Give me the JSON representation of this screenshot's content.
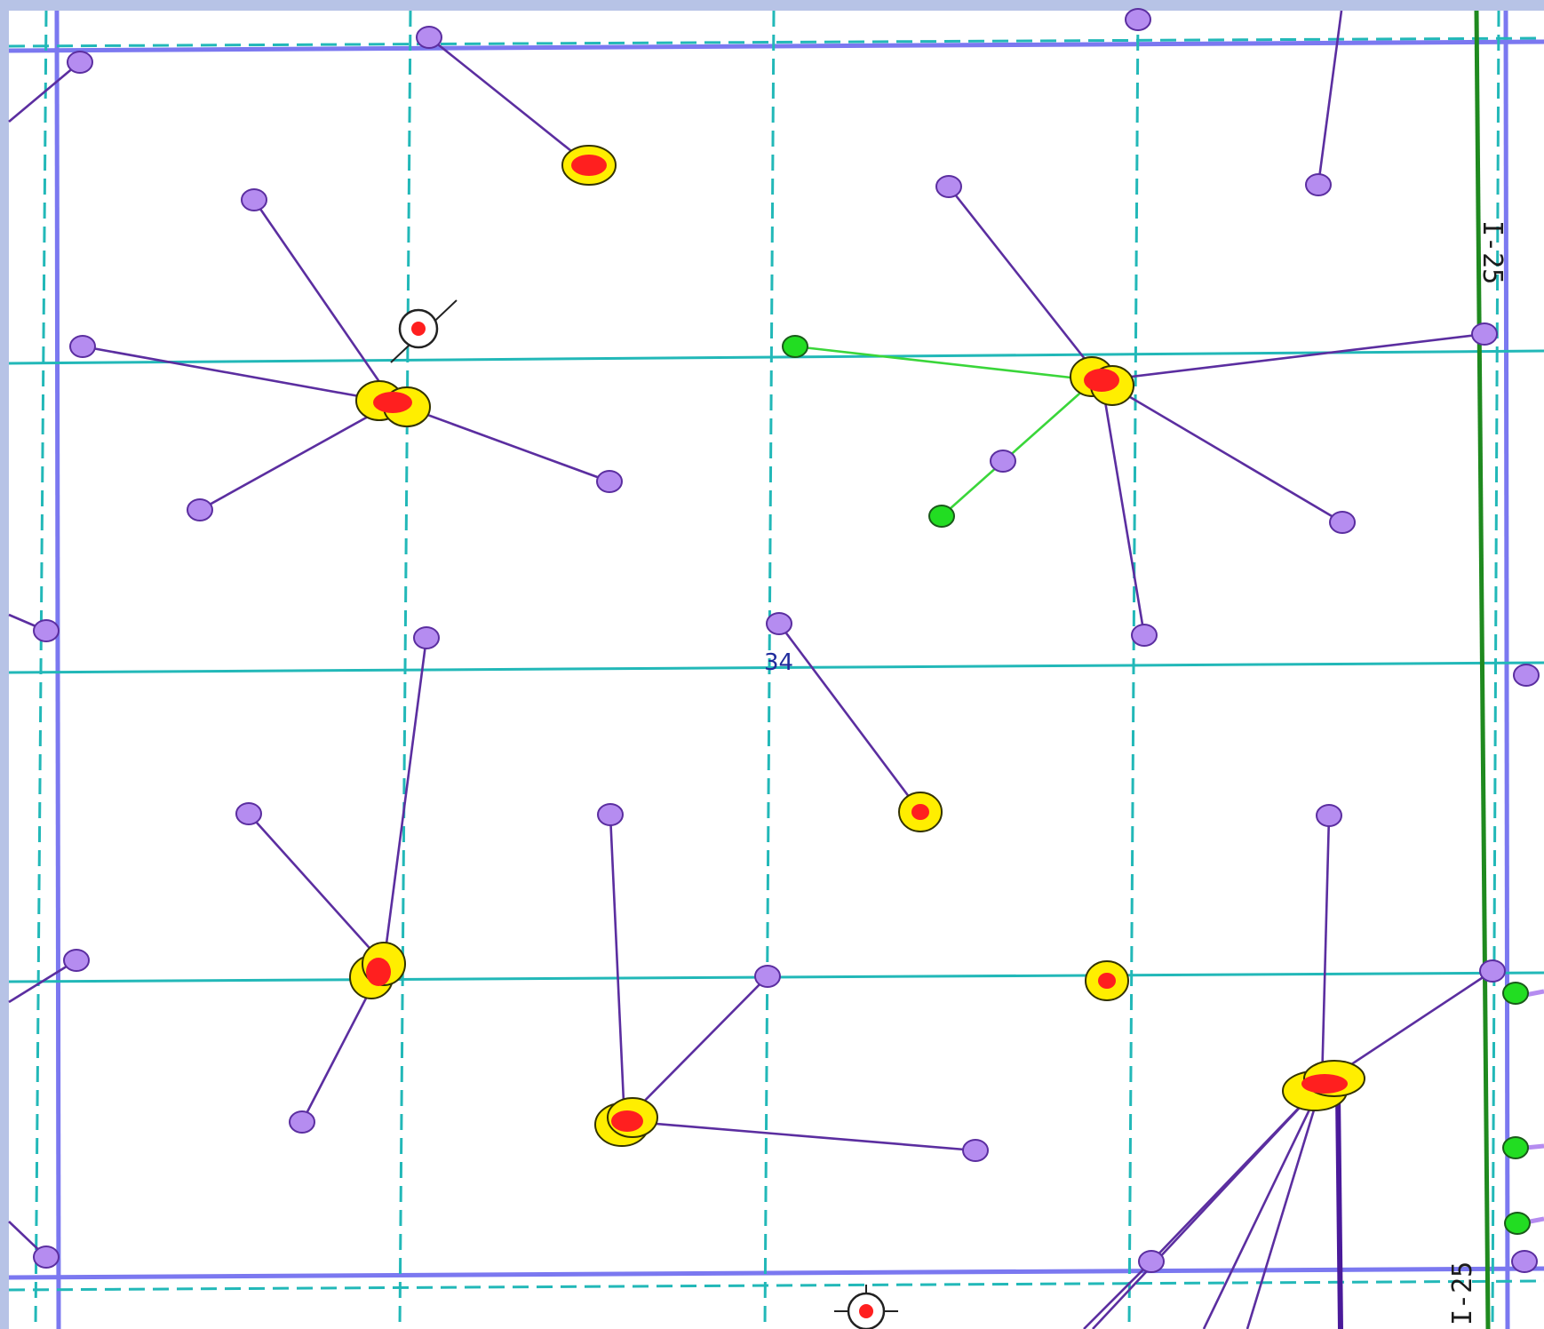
{
  "map": {
    "section_label": "34",
    "road_labels": [
      "I-25",
      "I-25"
    ],
    "colors": {
      "frame": "#b7c3e6",
      "background": "#ffffff",
      "township_line": "#7b78f0",
      "section_grid": "#22b8b8",
      "well_line": "#5b2ea0",
      "well_line_active": "#3ad63a",
      "bottom_hole": "#b58cf0",
      "bottom_hole_active": "#22dd22",
      "surface_ring": "#ffee00",
      "surface_core": "#ff1f1f",
      "highway": "#1f8a1f"
    },
    "icons": {
      "surface_location": "well-pad-icon",
      "bottom_hole": "bottom-hole-icon",
      "permit": "permit-target-icon"
    }
  }
}
